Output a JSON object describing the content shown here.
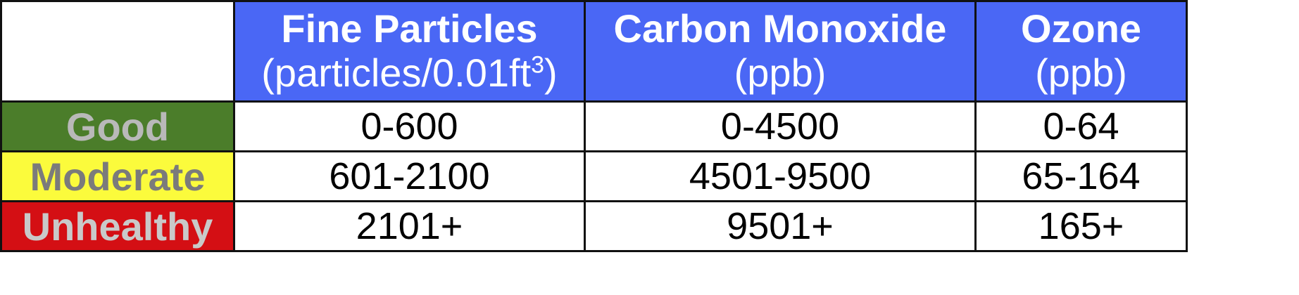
{
  "table": {
    "columns": [
      {
        "title": "Fine Particles",
        "unit": "(particles/0.01ft",
        "unit_sup": "3",
        "unit_end": ")"
      },
      {
        "title": "Carbon Monoxide",
        "unit": "(ppb)",
        "unit_sup": "",
        "unit_end": ""
      },
      {
        "title": "Ozone",
        "unit": "(ppb)",
        "unit_sup": "",
        "unit_end": ""
      }
    ],
    "header_color": "#4a67f5",
    "rows": [
      {
        "level": "Good",
        "level_bg": "#4b7d2a",
        "level_color": "#b9b9b9",
        "values": [
          "0-600",
          "0-4500",
          "0-64"
        ]
      },
      {
        "level": "Moderate",
        "level_bg": "#fbfb3c",
        "level_color": "#7b7b7b",
        "values": [
          "601-2100",
          "4501-9500",
          "65-164"
        ]
      },
      {
        "level": "Unhealthy",
        "level_bg": "#d40f14",
        "level_color": "#c9c9c9",
        "values": [
          "2101+",
          "9501+",
          "165+"
        ]
      }
    ]
  }
}
